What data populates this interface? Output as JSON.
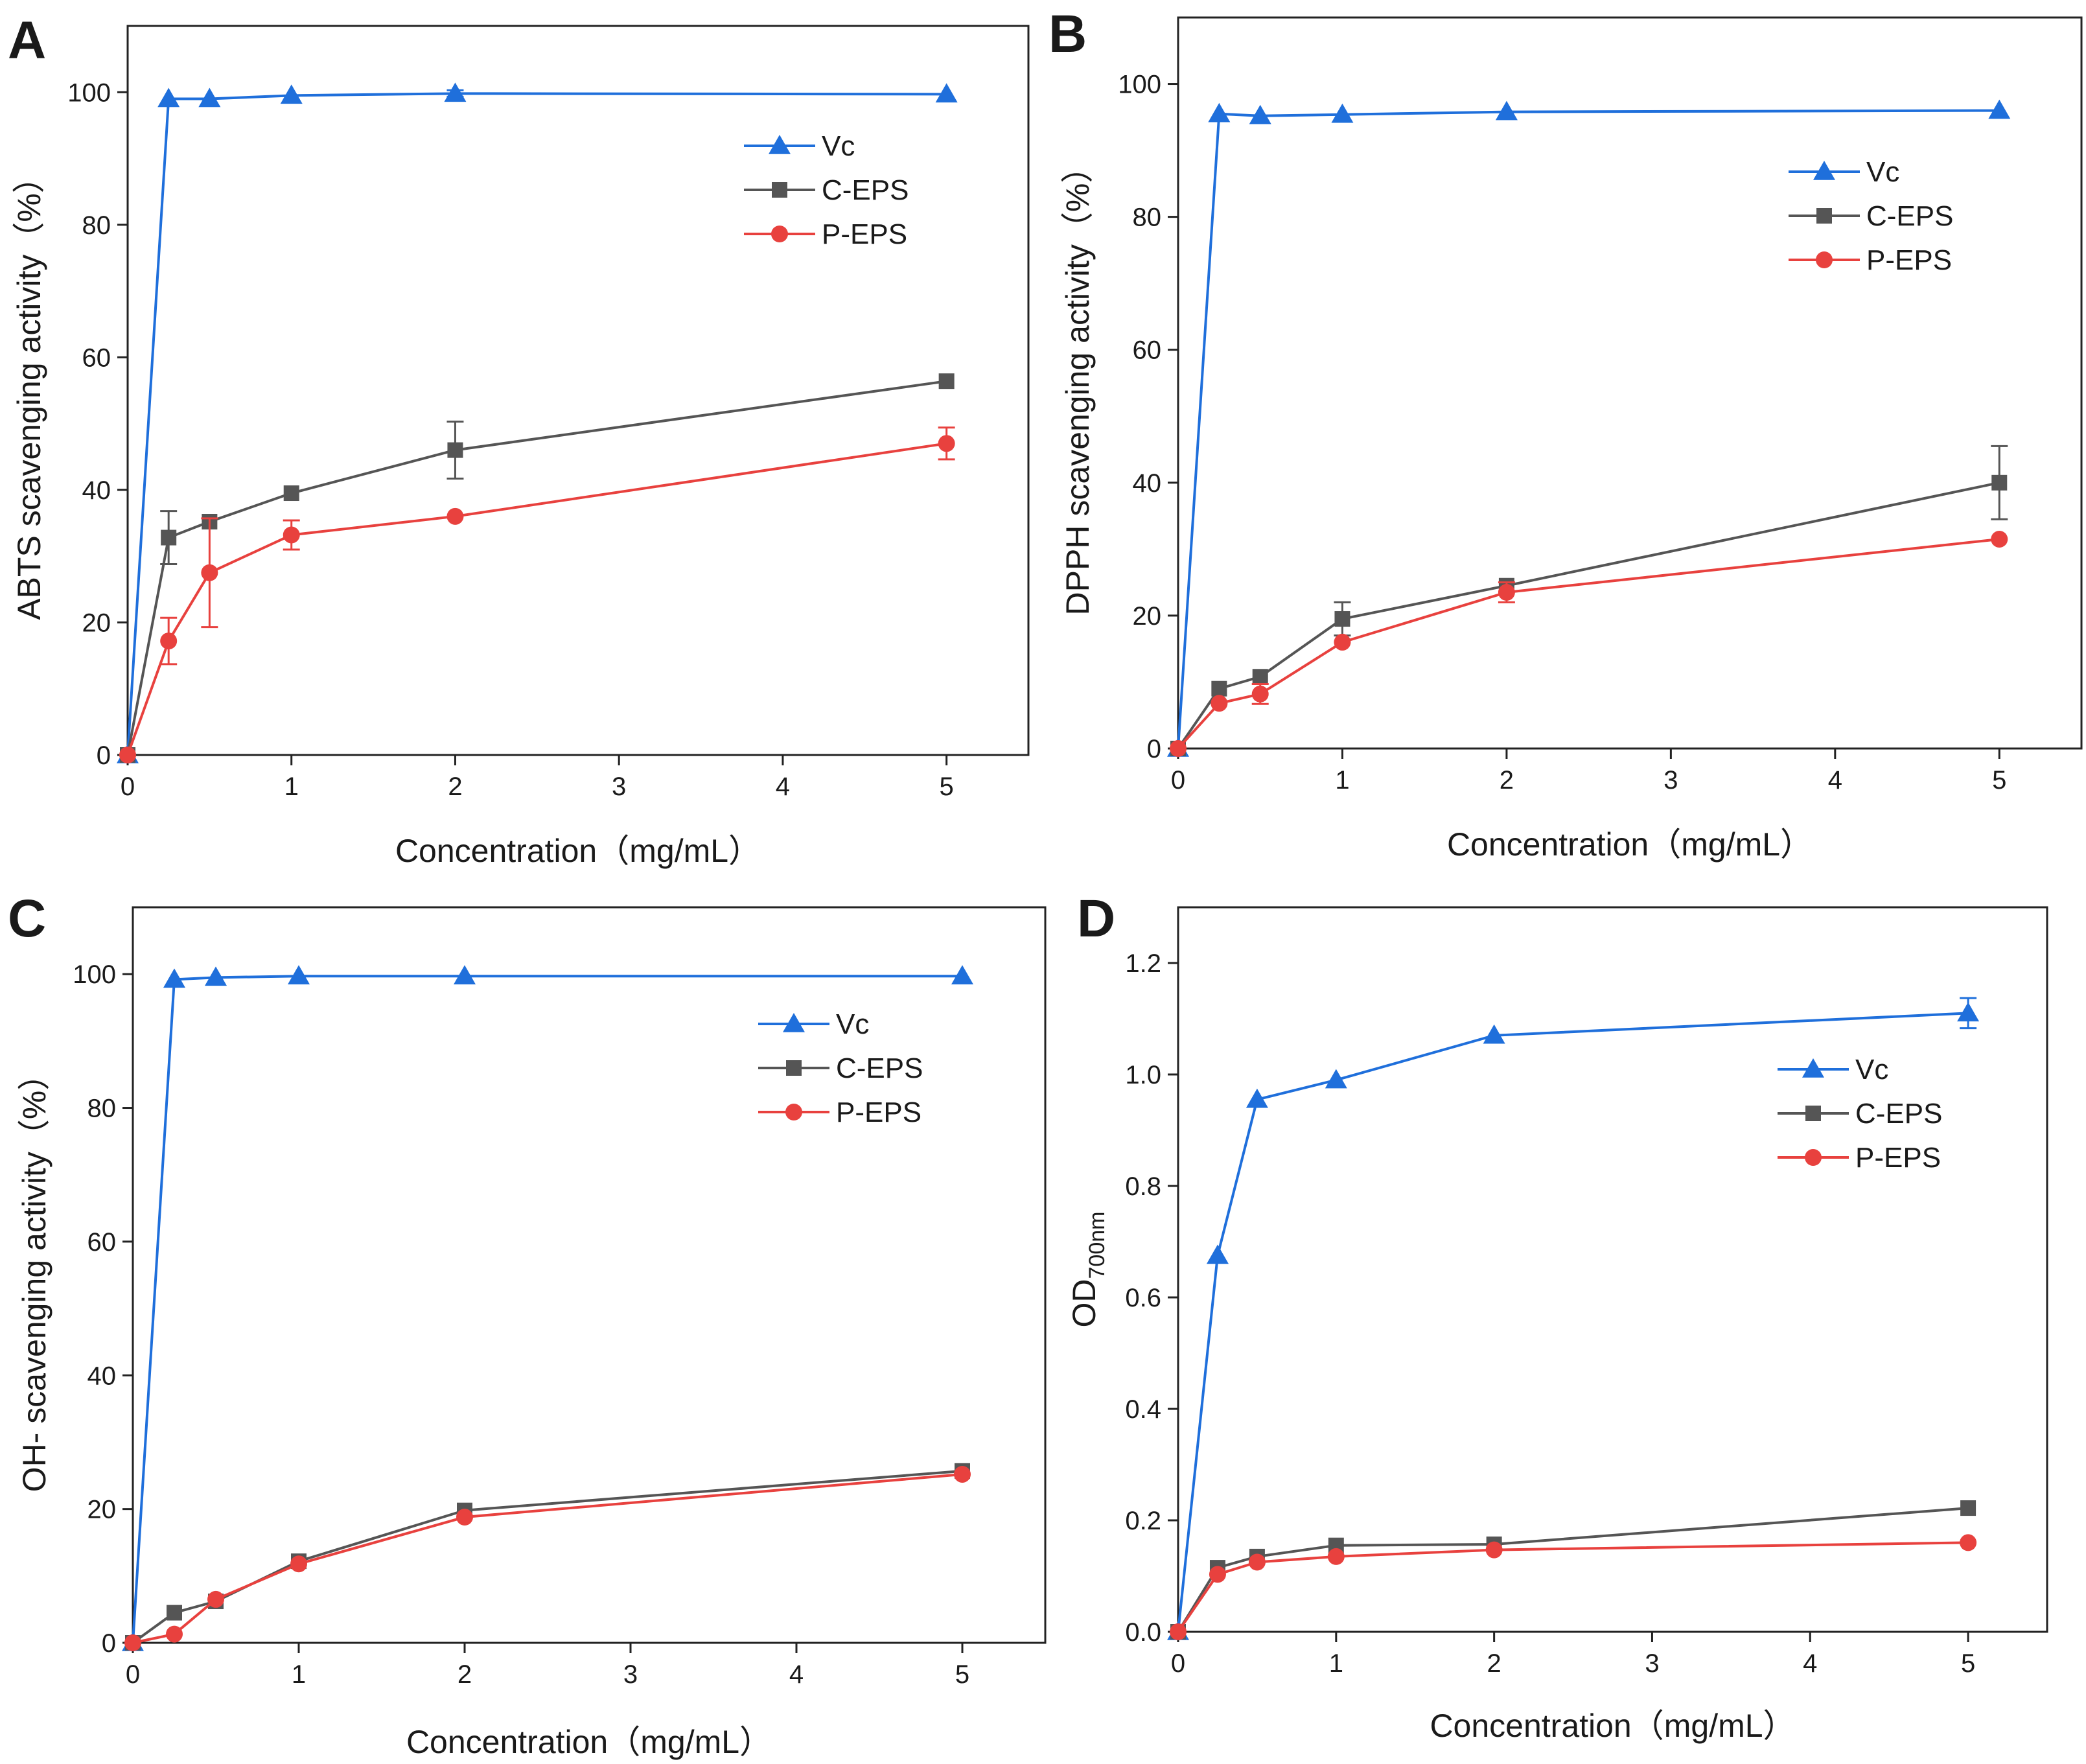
{
  "chart_data": [
    {
      "type": "line",
      "panel_label": "A",
      "title": "",
      "xlabel": "Concentration（mg/mL）",
      "ylabel": "ABTS scavenging activity（%）",
      "ylabel_sub": "",
      "ylabel_tail": "",
      "xlim": [
        0,
        5.5
      ],
      "ylim": [
        0,
        110
      ],
      "xticks": [
        0,
        1,
        2,
        3,
        4,
        5
      ],
      "yticks": [
        0,
        20,
        40,
        60,
        80,
        100
      ],
      "ytick_labels": [
        "0",
        "20",
        "40",
        "60",
        "80",
        "100"
      ],
      "x": [
        0,
        0.25,
        0.5,
        1,
        2,
        5
      ],
      "grid": false,
      "legend": "right",
      "series": [
        {
          "name": "Vc",
          "marker": "triangle",
          "color": "#1f6fdb",
          "values": [
            0,
            99,
            99,
            99.5,
            99.8,
            99.7
          ],
          "errors": [
            0,
            0,
            0,
            0,
            0.5,
            0
          ]
        },
        {
          "name": "C-EPS",
          "marker": "square",
          "color": "#555555",
          "values": [
            0,
            32.8,
            35.2,
            39.5,
            46,
            56.4
          ],
          "errors": [
            0,
            4,
            0,
            0,
            4.3,
            0
          ]
        },
        {
          "name": "P-EPS",
          "marker": "circle",
          "color": "#e8413e",
          "values": [
            0,
            17.2,
            27.5,
            33.2,
            36,
            47
          ],
          "errors": [
            0,
            3.5,
            8.2,
            2.2,
            0,
            2.4
          ]
        }
      ]
    },
    {
      "type": "line",
      "panel_label": "B",
      "title": "",
      "xlabel": "Concentration（mg/mL）",
      "ylabel": "DPPH scavenging activity（%）",
      "ylabel_sub": "",
      "ylabel_tail": "",
      "xlim": [
        0,
        5.5
      ],
      "ylim": [
        0,
        110
      ],
      "xticks": [
        0,
        1,
        2,
        3,
        4,
        5
      ],
      "yticks": [
        0,
        20,
        40,
        60,
        80,
        100
      ],
      "ytick_labels": [
        "0",
        "20",
        "40",
        "60",
        "80",
        "100"
      ],
      "x": [
        0,
        0.25,
        0.5,
        1,
        2,
        5
      ],
      "grid": false,
      "legend": "right",
      "series": [
        {
          "name": "Vc",
          "marker": "triangle",
          "color": "#1f6fdb",
          "values": [
            0,
            95.5,
            95.2,
            95.4,
            95.8,
            96
          ],
          "errors": [
            0,
            0,
            0,
            0,
            0,
            0
          ]
        },
        {
          "name": "C-EPS",
          "marker": "square",
          "color": "#555555",
          "values": [
            0,
            9,
            10.8,
            19.5,
            24.5,
            40
          ],
          "errors": [
            0,
            0,
            0,
            2.5,
            0,
            5.5
          ]
        },
        {
          "name": "P-EPS",
          "marker": "circle",
          "color": "#e8413e",
          "values": [
            0,
            6.8,
            8.2,
            16,
            23.5,
            31.5
          ],
          "errors": [
            0,
            0,
            1.5,
            0,
            1.5,
            0
          ]
        }
      ]
    },
    {
      "type": "line",
      "panel_label": "C",
      "title": "",
      "xlabel": "Concentration（mg/mL）",
      "ylabel": "OH- scavenging activity（%）",
      "ylabel_sub": "",
      "ylabel_tail": "",
      "xlim": [
        0,
        5.5
      ],
      "ylim": [
        0,
        110
      ],
      "xticks": [
        0,
        1,
        2,
        3,
        4,
        5
      ],
      "yticks": [
        0,
        20,
        40,
        60,
        80,
        100
      ],
      "ytick_labels": [
        "0",
        "20",
        "40",
        "60",
        "80",
        "100"
      ],
      "x": [
        0,
        0.25,
        0.5,
        1,
        2,
        5
      ],
      "grid": false,
      "legend": "right",
      "series": [
        {
          "name": "Vc",
          "marker": "triangle",
          "color": "#1f6fdb",
          "values": [
            0,
            99.2,
            99.5,
            99.7,
            99.7,
            99.7
          ],
          "errors": [
            0,
            0,
            0,
            0,
            0,
            0
          ]
        },
        {
          "name": "C-EPS",
          "marker": "square",
          "color": "#555555",
          "values": [
            0,
            4.5,
            6.2,
            12.2,
            19.8,
            25.7
          ],
          "errors": [
            0,
            0,
            0,
            0,
            0,
            0
          ]
        },
        {
          "name": "P-EPS",
          "marker": "circle",
          "color": "#e8413e",
          "values": [
            0,
            1.3,
            6.5,
            11.8,
            18.8,
            25.2
          ],
          "errors": [
            0,
            0,
            0,
            0,
            0,
            0
          ]
        }
      ]
    },
    {
      "type": "line",
      "panel_label": "D",
      "title": "",
      "xlabel": "Concentration（mg/mL）",
      "ylabel": "OD",
      "ylabel_sub": "700nm",
      "ylabel_tail": "",
      "xlim": [
        0,
        5.5
      ],
      "ylim": [
        0,
        1.3
      ],
      "xticks": [
        0,
        1,
        2,
        3,
        4,
        5
      ],
      "yticks": [
        0,
        0.2,
        0.4,
        0.6,
        0.8,
        1.0,
        1.2
      ],
      "ytick_labels": [
        "0.0",
        "0.2",
        "0.4",
        "0.6",
        "0.8",
        "1.0",
        "1.2"
      ],
      "x": [
        0,
        0.25,
        0.5,
        1,
        2,
        5
      ],
      "grid": false,
      "legend": "right",
      "series": [
        {
          "name": "Vc",
          "marker": "triangle",
          "color": "#1f6fdb",
          "values": [
            0,
            0.675,
            0.955,
            0.99,
            1.07,
            1.11
          ],
          "errors": [
            0,
            0,
            0,
            0,
            0,
            0.027
          ]
        },
        {
          "name": "C-EPS",
          "marker": "square",
          "color": "#555555",
          "values": [
            0,
            0.115,
            0.135,
            0.155,
            0.157,
            0.222
          ],
          "errors": [
            0,
            0,
            0,
            0,
            0,
            0
          ]
        },
        {
          "name": "P-EPS",
          "marker": "circle",
          "color": "#e8413e",
          "values": [
            0,
            0.103,
            0.125,
            0.135,
            0.147,
            0.16
          ],
          "errors": [
            0,
            0,
            0,
            0,
            0,
            0
          ]
        }
      ]
    }
  ]
}
